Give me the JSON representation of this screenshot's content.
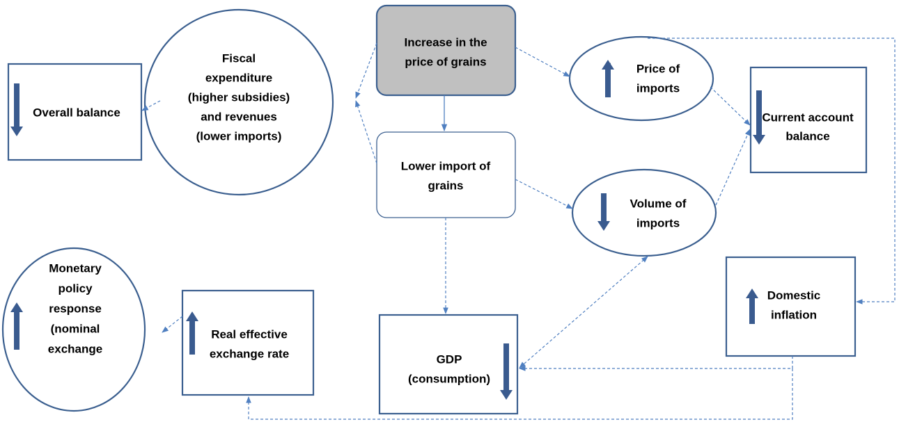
{
  "nodes": [
    {
      "id": "overall",
      "lines": [
        "Overall balance"
      ]
    },
    {
      "id": "fiscal",
      "lines": [
        "Fiscal",
        "expenditure",
        "(higher subsidies)",
        "and revenues",
        "(lower imports)"
      ]
    },
    {
      "id": "increase",
      "lines": [
        "Increase in the",
        "price of grains"
      ]
    },
    {
      "id": "lower",
      "lines": [
        "Lower import of",
        "grains"
      ]
    },
    {
      "id": "price",
      "lines": [
        "Price of",
        "imports"
      ]
    },
    {
      "id": "volume",
      "lines": [
        "Volume of",
        "imports"
      ]
    },
    {
      "id": "current",
      "lines": [
        "Current account",
        "balance"
      ]
    },
    {
      "id": "inflation",
      "lines": [
        "Domestic",
        "inflation"
      ]
    },
    {
      "id": "gdp",
      "lines": [
        "GDP",
        "(consumption)"
      ]
    },
    {
      "id": "reer",
      "lines": [
        "Real effective",
        "exchange rate"
      ]
    },
    {
      "id": "monetary",
      "lines": [
        "Monetary",
        "policy",
        "response",
        "(nominal",
        "exchange"
      ]
    }
  ]
}
